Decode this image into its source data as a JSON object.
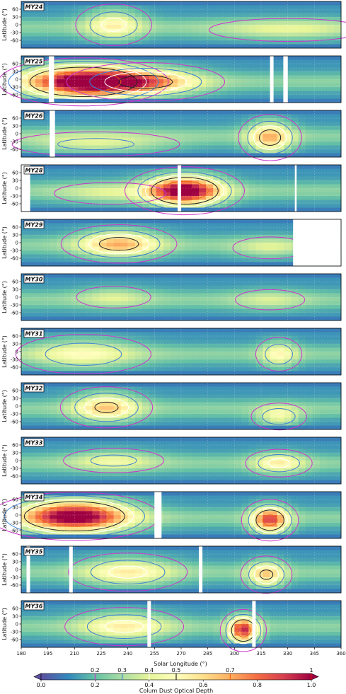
{
  "chart_data": {
    "type": "heatmap",
    "xlabel": "Solar Longitude (°)",
    "ylabel": "Latitude (°)",
    "xlim": [
      180,
      360
    ],
    "ylim": [
      -90,
      90
    ],
    "x_ticks": [
      180,
      195,
      210,
      225,
      240,
      255,
      270,
      285,
      300,
      315,
      330,
      345,
      360
    ],
    "y_ticks": [
      60,
      30,
      0,
      -30,
      -60
    ],
    "colorbar": {
      "label": "Colum Dust Optical Depth",
      "range": [
        0,
        1
      ],
      "ticks": [
        "0.0",
        "0.2",
        "0.4",
        "0.6",
        "0.8",
        "1.0"
      ],
      "contour_levels": [
        "0.2",
        "0.3",
        "0.4",
        "0.5",
        "0.7",
        "1"
      ],
      "contour_colors": [
        "#cc33cc",
        "#3a7fd6",
        "#ffffff",
        "#222222",
        "#ee6611",
        "#cc1111"
      ],
      "colormap": "Spectral_r",
      "extend": "both"
    },
    "panels": [
      {
        "label": "MY24",
        "gaps": [],
        "blobs": [
          {
            "x": 232,
            "y": 0,
            "tau": 0.45,
            "w": 16,
            "h": 60
          },
          {
            "x": 330,
            "y": -20,
            "tau": 0.32,
            "w": 40,
            "h": 40
          }
        ]
      },
      {
        "label": "MY25",
        "gaps": [
          [
            195.5,
            198.5
          ],
          [
            320,
            322
          ],
          [
            327.5,
            330
          ]
        ],
        "blobs": [
          {
            "x": 215,
            "y": -10,
            "tau": 1.0,
            "w": 32,
            "h": 60
          },
          {
            "x": 250,
            "y": -10,
            "tau": 0.6,
            "w": 30,
            "h": 50
          }
        ]
      },
      {
        "label": "MY26",
        "gaps": [
          [
            196,
            199
          ]
        ],
        "blobs": [
          {
            "x": 320,
            "y": -15,
            "tau": 0.6,
            "w": 12,
            "h": 60
          },
          {
            "x": 222,
            "y": -40,
            "tau": 0.35,
            "w": 40,
            "h": 40
          }
        ]
      },
      {
        "label": "MY28",
        "gaps": [
          [
            178,
            185
          ],
          [
            268,
            270
          ],
          [
            334,
            335
          ]
        ],
        "blobs": [
          {
            "x": 272,
            "y": -10,
            "tau": 1.0,
            "w": 20,
            "h": 55
          },
          {
            "x": 230,
            "y": -20,
            "tau": 0.3,
            "w": 30,
            "h": 40
          }
        ]
      },
      {
        "label": "MY29",
        "gaps": [
          [
            333,
            360
          ]
        ],
        "blobs": [
          {
            "x": 235,
            "y": -5,
            "tau": 0.6,
            "w": 22,
            "h": 50
          },
          {
            "x": 320,
            "y": -20,
            "tau": 0.3,
            "w": 20,
            "h": 40
          }
        ]
      },
      {
        "label": "MY30",
        "gaps": [],
        "blobs": [
          {
            "x": 232,
            "y": 0,
            "tau": 0.3,
            "w": 20,
            "h": 40
          },
          {
            "x": 320,
            "y": -10,
            "tau": 0.28,
            "w": 20,
            "h": 40
          }
        ]
      },
      {
        "label": "MY31",
        "gaps": [],
        "blobs": [
          {
            "x": 215,
            "y": -10,
            "tau": 0.4,
            "w": 30,
            "h": 60
          },
          {
            "x": 325,
            "y": -10,
            "tau": 0.42,
            "w": 10,
            "h": 50
          }
        ]
      },
      {
        "label": "MY32",
        "gaps": [],
        "blobs": [
          {
            "x": 228,
            "y": -5,
            "tau": 0.55,
            "w": 18,
            "h": 55
          },
          {
            "x": 325,
            "y": -40,
            "tau": 0.42,
            "w": 12,
            "h": 40
          }
        ]
      },
      {
        "label": "MY33",
        "gaps": [],
        "blobs": [
          {
            "x": 232,
            "y": 0,
            "tau": 0.35,
            "w": 24,
            "h": 40
          },
          {
            "x": 325,
            "y": -10,
            "tau": 0.45,
            "w": 14,
            "h": 40
          }
        ]
      },
      {
        "label": "MY34",
        "gaps": [
          [
            255,
            259
          ]
        ],
        "blobs": [
          {
            "x": 210,
            "y": -5,
            "tau": 1.0,
            "w": 30,
            "h": 60
          },
          {
            "x": 320,
            "y": -20,
            "tau": 0.8,
            "w": 10,
            "h": 50
          }
        ]
      },
      {
        "label": "MY35",
        "gaps": [
          [
            183,
            185
          ],
          [
            207,
            209
          ],
          [
            280,
            282
          ]
        ],
        "blobs": [
          {
            "x": 240,
            "y": -10,
            "tau": 0.45,
            "w": 25,
            "h": 55
          },
          {
            "x": 318,
            "y": -20,
            "tau": 0.55,
            "w": 10,
            "h": 50
          }
        ]
      },
      {
        "label": "MY36",
        "gaps": [
          [
            251,
            253
          ],
          [
            310,
            312
          ]
        ],
        "blobs": [
          {
            "x": 238,
            "y": -10,
            "tau": 0.45,
            "w": 25,
            "h": 55
          },
          {
            "x": 305,
            "y": -25,
            "tau": 0.85,
            "w": 8,
            "h": 50
          }
        ]
      }
    ]
  }
}
